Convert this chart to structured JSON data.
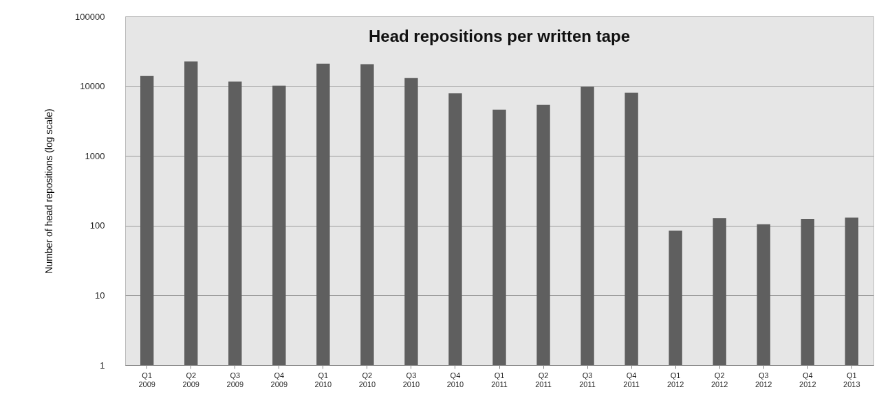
{
  "chart_data": {
    "type": "bar",
    "title": "Head repositions per written tape",
    "ylabel": "Number of head repositions (log scale)",
    "categories": [
      "Q1 2009",
      "Q2 2009",
      "Q3 2009",
      "Q4 2009",
      "Q1 2010",
      "Q2 2010",
      "Q3 2010",
      "Q4 2010",
      "Q1 2011",
      "Q2 2011",
      "Q3 2011",
      "Q4 2011",
      "Q1 2012",
      "Q2 2012",
      "Q3 2012",
      "Q4 2012",
      "Q1 2013"
    ],
    "values": [
      14000,
      22600,
      11700,
      10200,
      21100,
      20700,
      13100,
      7900,
      4600,
      5400,
      9900,
      8100,
      85,
      128,
      105,
      125,
      131
    ],
    "color": "#5f5f5f",
    "ylim": [
      1,
      100000
    ],
    "yticks": [
      1,
      10,
      100,
      1000,
      10000,
      100000
    ],
    "log": true,
    "grid": "y"
  }
}
